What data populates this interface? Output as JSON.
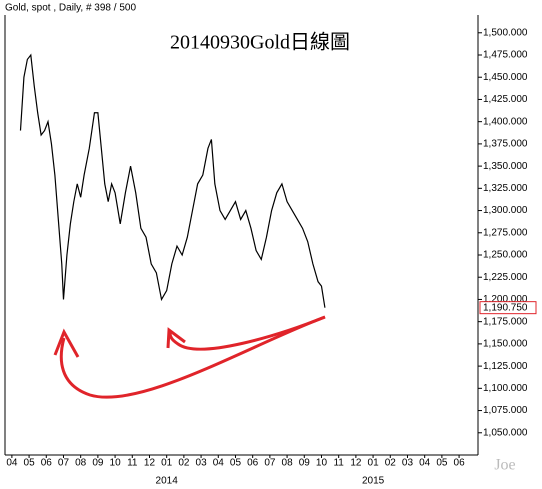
{
  "chart_data": {
    "type": "line",
    "title": "20140930Gold日線圖",
    "subtitle": "Gold, spot , Daily, # 398 / 500",
    "watermark": "Joe",
    "xlim": [
      -0.4,
      27.1
    ],
    "xticks": [
      {
        "value": 0,
        "label": "04"
      },
      {
        "value": 1,
        "label": "05"
      },
      {
        "value": 2,
        "label": "06"
      },
      {
        "value": 3,
        "label": "07"
      },
      {
        "value": 4,
        "label": "08"
      },
      {
        "value": 5,
        "label": "09"
      },
      {
        "value": 6,
        "label": "10"
      },
      {
        "value": 7,
        "label": "11"
      },
      {
        "value": 8,
        "label": "12"
      },
      {
        "value": 9,
        "label": "01"
      },
      {
        "value": 10,
        "label": "02"
      },
      {
        "value": 11,
        "label": "03"
      },
      {
        "value": 12,
        "label": "04"
      },
      {
        "value": 13,
        "label": "05"
      },
      {
        "value": 14,
        "label": "06"
      },
      {
        "value": 15,
        "label": "07"
      },
      {
        "value": 16,
        "label": "08"
      },
      {
        "value": 17,
        "label": "09"
      },
      {
        "value": 18,
        "label": "10"
      },
      {
        "value": 19,
        "label": "11"
      },
      {
        "value": 20,
        "label": "12"
      },
      {
        "value": 21,
        "label": "01"
      },
      {
        "value": 22,
        "label": "02"
      },
      {
        "value": 23,
        "label": "03"
      },
      {
        "value": 24,
        "label": "04"
      },
      {
        "value": 25,
        "label": "05"
      },
      {
        "value": 26,
        "label": "06"
      }
    ],
    "year_labels": [
      {
        "value": 9,
        "label": "2014"
      },
      {
        "value": 21,
        "label": "2015"
      }
    ],
    "ylim": [
      1025,
      1520
    ],
    "yticks": [
      {
        "value": 1050,
        "label": "1,050.000"
      },
      {
        "value": 1075,
        "label": "1,075.000"
      },
      {
        "value": 1100,
        "label": "1,100.000"
      },
      {
        "value": 1125,
        "label": "1,125.000"
      },
      {
        "value": 1150,
        "label": "1,150.000"
      },
      {
        "value": 1175,
        "label": "1,175.000"
      },
      {
        "value": 1200,
        "label": "1,200.000"
      },
      {
        "value": 1225,
        "label": "1,225.000"
      },
      {
        "value": 1250,
        "label": "1,250.000"
      },
      {
        "value": 1275,
        "label": "1,275.000"
      },
      {
        "value": 1300,
        "label": "1,300.000"
      },
      {
        "value": 1325,
        "label": "1,325.000"
      },
      {
        "value": 1350,
        "label": "1,350.000"
      },
      {
        "value": 1375,
        "label": "1,375.000"
      },
      {
        "value": 1400,
        "label": "1,400.000"
      },
      {
        "value": 1425,
        "label": "1,425.000"
      },
      {
        "value": 1450,
        "label": "1,450.000"
      },
      {
        "value": 1475,
        "label": "1,475.000"
      },
      {
        "value": 1500,
        "label": "1,500.000"
      }
    ],
    "last_value": {
      "value": 1190.75,
      "label": "1,190.750"
    },
    "series": [
      {
        "color": "#000000",
        "x": [
          0.5,
          0.7,
          0.9,
          1.1,
          1.3,
          1.5,
          1.7,
          1.9,
          2.1,
          2.3,
          2.5,
          2.7,
          2.9,
          3.0,
          3.2,
          3.4,
          3.6,
          3.8,
          4.0,
          4.2,
          4.5,
          4.8,
          5.0,
          5.2,
          5.4,
          5.6,
          5.8,
          6.0,
          6.3,
          6.6,
          6.9,
          7.2,
          7.5,
          7.8,
          8.1,
          8.4,
          8.7,
          9.0,
          9.3,
          9.6,
          9.9,
          10.2,
          10.5,
          10.8,
          11.1,
          11.4,
          11.6,
          11.8,
          12.1,
          12.4,
          12.7,
          13.0,
          13.3,
          13.6,
          13.9,
          14.2,
          14.5,
          14.8,
          15.1,
          15.4,
          15.7,
          16.0,
          16.3,
          16.6,
          16.9,
          17.2,
          17.5,
          17.8,
          18.0,
          18.2
        ],
        "values": [
          1390,
          1450,
          1470,
          1475,
          1440,
          1410,
          1385,
          1390,
          1400,
          1375,
          1340,
          1290,
          1240,
          1200,
          1250,
          1285,
          1310,
          1330,
          1315,
          1340,
          1370,
          1410,
          1410,
          1370,
          1330,
          1310,
          1330,
          1320,
          1285,
          1320,
          1350,
          1320,
          1280,
          1270,
          1240,
          1230,
          1200,
          1210,
          1240,
          1260,
          1250,
          1270,
          1300,
          1330,
          1340,
          1370,
          1380,
          1330,
          1300,
          1290,
          1300,
          1310,
          1290,
          1300,
          1280,
          1255,
          1245,
          1270,
          1300,
          1320,
          1330,
          1310,
          1300,
          1290,
          1280,
          1265,
          1240,
          1220,
          1215,
          1190.75
        ]
      }
    ]
  }
}
